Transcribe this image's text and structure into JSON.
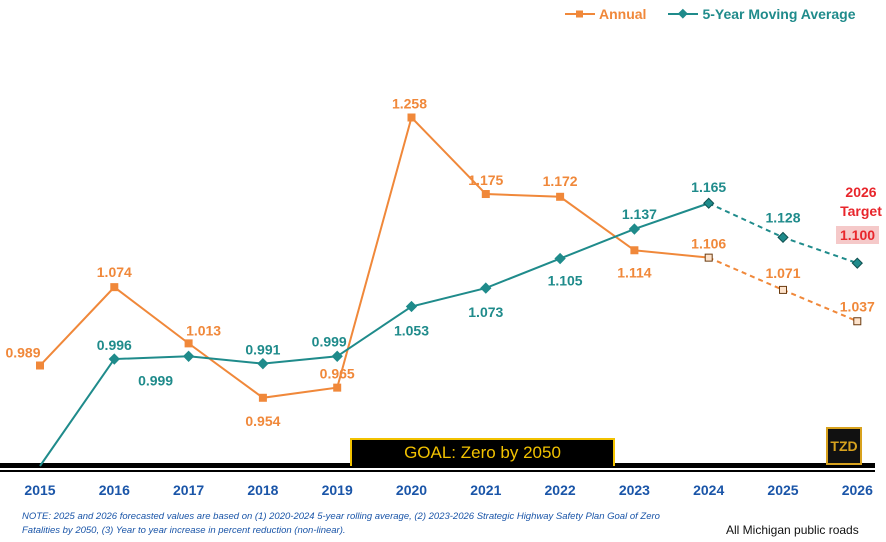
{
  "legend": {
    "annual_label": "Annual",
    "moving_avg_label": "5-Year Moving Average"
  },
  "colors": {
    "annual": "#f0883a",
    "moving_avg": "#1f8b8b",
    "target": "#e8262c",
    "goal_text": "#f2c200"
  },
  "goal_label": "GOAL:  Zero by 2050",
  "logo_text": "TZD",
  "target": {
    "label_line1": "2026",
    "label_line2": "Target",
    "value_label": "1.100"
  },
  "note": "NOTE:  2025 and 2026 forecasted values are based on (1) 2020-2024 5-year rolling average, (2) 2023-2026 Strategic Highway Safety Plan Goal of Zero Fatalities by 2050, (3) Year to year increase in percent reduction (non-linear).",
  "source": "All Michigan public roads",
  "chart_data": {
    "type": "line",
    "categories": [
      "2015",
      "2016",
      "2017",
      "2018",
      "2019",
      "2020",
      "2021",
      "2022",
      "2023",
      "2024",
      "2025",
      "2026"
    ],
    "series": [
      {
        "name": "Annual",
        "values": [
          0.989,
          1.074,
          1.013,
          0.954,
          0.965,
          1.258,
          1.175,
          1.172,
          1.114,
          1.106,
          1.071,
          1.037
        ],
        "labels": [
          "0.989",
          "1.074",
          "1.013",
          "0.954",
          "0.965",
          "1.258",
          "1.175",
          "1.172",
          "1.114",
          "1.106",
          "1.071",
          "1.037"
        ],
        "forecast_from_index": 9
      },
      {
        "name": "5-Year Moving Average",
        "values": [
          0.88,
          0.996,
          0.999,
          0.991,
          0.999,
          1.053,
          1.073,
          1.105,
          1.137,
          1.165,
          1.128,
          1.1
        ],
        "labels": [
          "",
          "0.996",
          "0.999",
          "0.991",
          "0.999",
          "1.053",
          "1.073",
          "1.105",
          "1.137",
          "1.165",
          "1.128",
          ""
        ],
        "forecast_from_index": 9
      }
    ],
    "ylim": [
      0.88,
      1.29
    ]
  }
}
